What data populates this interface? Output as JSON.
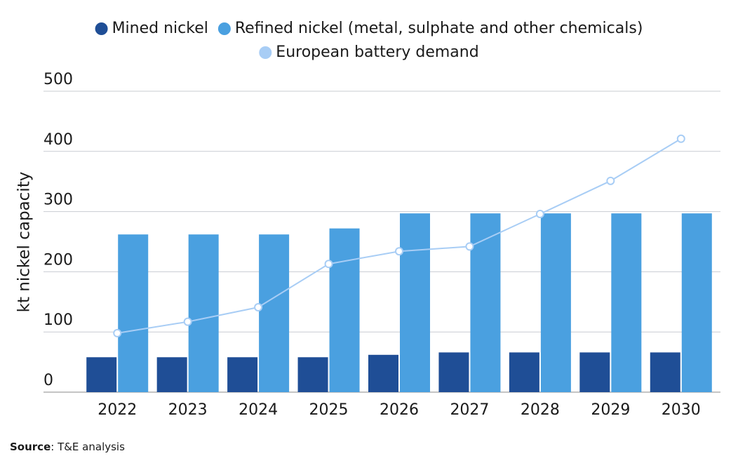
{
  "chart_data": {
    "type": "bar",
    "y_label": "kt nickel capacity",
    "categories": [
      "2022",
      "2023",
      "2024",
      "2025",
      "2026",
      "2027",
      "2028",
      "2029",
      "2030"
    ],
    "series": [
      {
        "name": "Mined nickel",
        "color": "#1f4e96",
        "type": "bar",
        "values": [
          58,
          58,
          58,
          58,
          62,
          66,
          66,
          66,
          66
        ]
      },
      {
        "name": "Refined nickel (metal, sulphate and other chemicals)",
        "color": "#4aa0e0",
        "type": "bar",
        "values": [
          262,
          262,
          262,
          272,
          297,
          297,
          297,
          297,
          297
        ]
      },
      {
        "name": "European battery demand",
        "color": "#a8cdf5",
        "type": "line",
        "values": [
          98,
          117,
          141,
          213,
          234,
          242,
          296,
          351,
          421
        ]
      }
    ],
    "ylim": [
      0,
      500
    ],
    "yticks": [
      0,
      100,
      200,
      300,
      400,
      500
    ],
    "grid": true,
    "source_label": "Source",
    "source_text": ": T&E analysis"
  }
}
